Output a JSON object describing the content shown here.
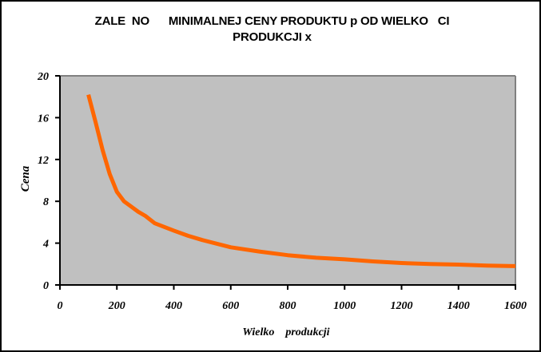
{
  "chart_data": {
    "type": "line",
    "title_line1": "ZALE  NO      MINIMALNEJ CENY PRODUKTU p OD WIELKO   CI",
    "title_line2": "PRODUKCJI x",
    "xlabel": "Wielko    produkcji",
    "ylabel": "Cena",
    "xlim": [
      0,
      1600
    ],
    "ylim": [
      0,
      20
    ],
    "xticks": [
      0,
      200,
      400,
      600,
      800,
      1000,
      1200,
      1400,
      1600
    ],
    "yticks": [
      0,
      4,
      8,
      12,
      16,
      20
    ],
    "grid": false,
    "legend": "none",
    "colors": {
      "line": "#ff6600",
      "plot_bg": "#c0c0c0"
    },
    "series": [
      {
        "name": "Cena",
        "x": [
          100,
          125,
          150,
          175,
          200,
          225,
          250,
          275,
          300,
          333,
          400,
          450,
          500,
          600,
          700,
          800,
          900,
          1000,
          1100,
          1200,
          1300,
          1400,
          1500,
          1600
        ],
        "y": [
          18.2,
          15.6,
          12.9,
          10.6,
          8.9,
          8.0,
          7.5,
          7.0,
          6.6,
          5.9,
          5.2,
          4.7,
          4.3,
          3.6,
          3.2,
          2.85,
          2.6,
          2.45,
          2.25,
          2.1,
          2.0,
          1.95,
          1.85,
          1.8
        ]
      }
    ]
  }
}
